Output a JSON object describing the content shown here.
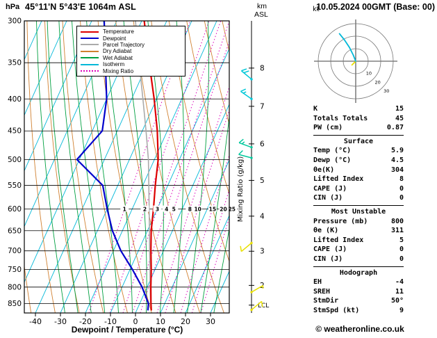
{
  "header": {
    "pressure_unit": "hPa",
    "station": "45°11'N 5°43'E 1064m ASL",
    "altitude_unit": [
      "km",
      "ASL"
    ],
    "datetime": "10.05.2024 00GMT (Base: 00)"
  },
  "legend": {
    "items": [
      {
        "label": "Temperature",
        "color": "#dd0000",
        "style": "solid"
      },
      {
        "label": "Dewpoint",
        "color": "#0000cc",
        "style": "solid"
      },
      {
        "label": "Parcel Trajectory",
        "color": "#aaaaaa",
        "style": "solid"
      },
      {
        "label": "Dry Adiabat",
        "color": "#d08030",
        "style": "solid"
      },
      {
        "label": "Wet Adiabat",
        "color": "#00a040",
        "style": "solid"
      },
      {
        "label": "Isotherm",
        "color": "#00b8d8",
        "style": "solid"
      },
      {
        "label": "Mixing Ratio",
        "color": "#dd00bb",
        "style": "dotted"
      }
    ]
  },
  "chart_data": {
    "type": "skewt_log_p",
    "title": "45°11'N 5°43'E 1064m ASL",
    "xlabel": "Dewpoint / Temperature (°C)",
    "x_ticks_C": [
      -40,
      -30,
      -20,
      -10,
      0,
      10,
      20,
      30
    ],
    "pressure_levels_hPa": [
      300,
      350,
      400,
      450,
      500,
      550,
      600,
      650,
      700,
      750,
      800,
      850
    ],
    "pressure_axis_range_hPa": [
      300,
      880
    ],
    "km_axis": {
      "ticks": [
        {
          "km": 8,
          "hPa": 357
        },
        {
          "km": 7,
          "hPa": 411
        },
        {
          "km": 6,
          "hPa": 472
        },
        {
          "km": 5,
          "hPa": 540
        },
        {
          "km": 4,
          "hPa": 616
        },
        {
          "km": 3,
          "hPa": 701
        },
        {
          "km": 2,
          "hPa": 795
        }
      ],
      "lcl": {
        "label": "LCL",
        "hPa": 855
      }
    },
    "mixing_ratio": {
      "label": "Mixing Ratio (g/kg)",
      "values_g_kg": [
        1,
        2,
        3,
        4,
        5,
        8,
        10,
        15,
        20,
        25
      ],
      "label_hPa": 600
    },
    "isotherms_C": {
      "min": -110,
      "max": 40,
      "step": 10
    },
    "dry_adiabats_K": {
      "min": 240,
      "max": 370,
      "step": 10
    },
    "wet_adiabats_C": {
      "min": -20,
      "max": 35,
      "step": 5
    },
    "sounding": {
      "pressure_hPa": [
        872,
        850,
        800,
        750,
        700,
        650,
        600,
        550,
        500,
        450,
        400,
        350,
        300
      ],
      "temperature_C": [
        5.9,
        4.5,
        1.5,
        -1.5,
        -5.0,
        -8.5,
        -11.5,
        -15.0,
        -18.5,
        -24.0,
        -31.0,
        -39.5,
        -49.0
      ],
      "dewpoint_C": [
        4.5,
        3.5,
        -2.0,
        -9.0,
        -17.0,
        -24.0,
        -30.0,
        -36.0,
        -51.0,
        -46.0,
        -50.0,
        -57.0,
        -65.0
      ],
      "parcel_C": [
        5.9,
        4.3,
        1.2,
        -2.0,
        -5.5,
        -9.2,
        -13.2,
        -17.6,
        -22.4,
        -28.5,
        -35.5,
        -43.5,
        -52.5
      ]
    },
    "winds": [
      {
        "pressure_hPa": 372,
        "dir_deg": 310,
        "speed_kt": 20,
        "color": "#00c8d8"
      },
      {
        "pressure_hPa": 400,
        "dir_deg": 305,
        "speed_kt": 15,
        "color": "#00c8d8"
      },
      {
        "pressure_hPa": 478,
        "dir_deg": 290,
        "speed_kt": 15,
        "color": "#00c89c"
      },
      {
        "pressure_hPa": 497,
        "dir_deg": 285,
        "speed_kt": 10,
        "color": "#00c89c"
      },
      {
        "pressure_hPa": 680,
        "dir_deg": 230,
        "speed_kt": 10,
        "color": "#e8e000"
      },
      {
        "pressure_hPa": 815,
        "dir_deg": 60,
        "speed_kt": 5,
        "color": "#e8e000"
      },
      {
        "pressure_hPa": 870,
        "dir_deg": 50,
        "speed_kt": 9,
        "color": "#e8e000"
      }
    ]
  },
  "hodograph": {
    "unit_label": "kt",
    "rings_kt": [
      10,
      20,
      30
    ],
    "trace": [
      {
        "color": "#e8e000",
        "points_kt": [
          [
            0,
            0
          ],
          [
            -3,
            3
          ]
        ]
      },
      {
        "color": "#00b8d8",
        "points_kt": [
          [
            0,
            0
          ],
          [
            -2,
            -5
          ],
          [
            -5,
            -11
          ],
          [
            -9,
            -17
          ],
          [
            -13,
            -22
          ]
        ]
      }
    ]
  },
  "indices": {
    "rows_top": [
      [
        "K",
        "15"
      ],
      [
        "Totals Totals",
        "45"
      ],
      [
        "PW (cm)",
        "0.87"
      ]
    ],
    "sections": [
      {
        "title": "Surface",
        "rows": [
          [
            "Temp (°C)",
            "5.9"
          ],
          [
            "Dewp (°C)",
            "4.5"
          ],
          [
            "θe(K)",
            "304"
          ],
          [
            "Lifted Index",
            "8"
          ],
          [
            "CAPE (J)",
            "0"
          ],
          [
            "CIN (J)",
            "0"
          ]
        ]
      },
      {
        "title": "Most Unstable",
        "rows": [
          [
            "Pressure (mb)",
            "800"
          ],
          [
            "θe (K)",
            "311"
          ],
          [
            "Lifted Index",
            "5"
          ],
          [
            "CAPE (J)",
            "0"
          ],
          [
            "CIN (J)",
            "0"
          ]
        ]
      },
      {
        "title": "Hodograph",
        "rows": [
          [
            "EH",
            "-4"
          ],
          [
            "SREH",
            "11"
          ],
          [
            "StmDir",
            "50°"
          ],
          [
            "StmSpd (kt)",
            "9"
          ]
        ]
      }
    ]
  },
  "footer": {
    "copyright": "© weatheronline.co.uk"
  }
}
